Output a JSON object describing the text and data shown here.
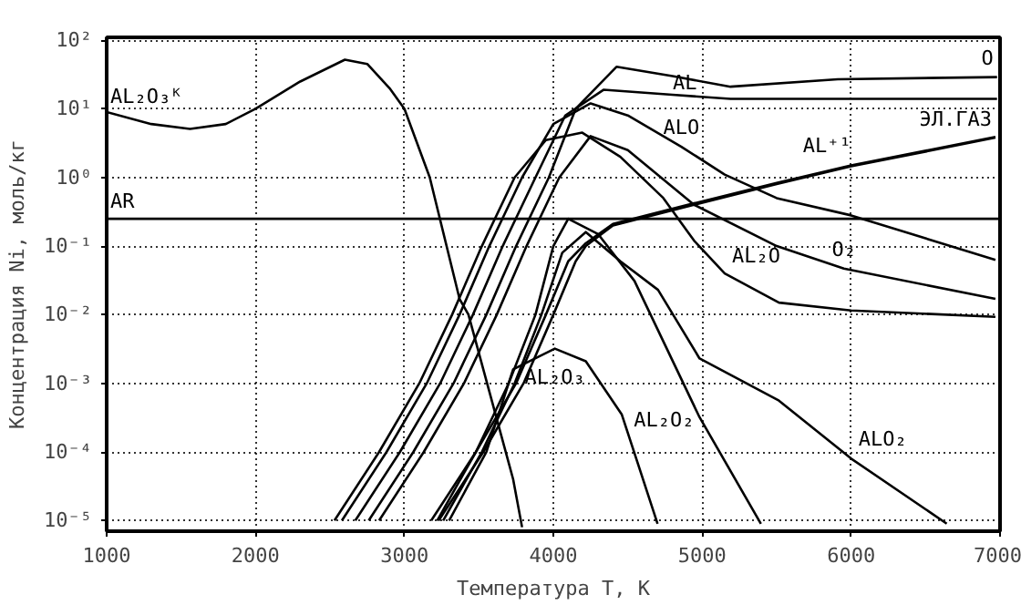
{
  "chart_data": {
    "type": "line",
    "xlabel": "Температура T, K",
    "ylabel": "Концентрация Ni, моль/кг",
    "log": "y",
    "grid": true,
    "line_style": "solid",
    "marker": "none",
    "xlim": [
      1000,
      7000
    ],
    "xticks": [
      1000,
      2000,
      3000,
      4000,
      5000,
      6000,
      7000
    ],
    "ylim": [
      7e-06,
      110
    ],
    "yticks": [
      {
        "value": 100,
        "label": "10²"
      },
      {
        "value": 10,
        "label": "10¹"
      },
      {
        "value": 1,
        "label": "10⁰"
      },
      {
        "value": 0.1,
        "label": "10⁻¹"
      },
      {
        "value": 0.01,
        "label": "10⁻²"
      },
      {
        "value": 0.001,
        "label": "10⁻³"
      },
      {
        "value": 0.0001,
        "label": "10⁻⁴"
      },
      {
        "value": 1e-05,
        "label": "10⁻⁵"
      }
    ],
    "series": [
      {
        "name": "AL₂O₃ᴷ",
        "color": "#000000",
        "x": [
          1000,
          1300,
          1560,
          1800,
          2000,
          2300,
          2600,
          2750,
          2900,
          3000,
          3170,
          3370,
          3430,
          3730,
          3790
        ],
        "values": [
          9,
          6,
          5.1,
          6,
          10,
          25,
          52,
          45,
          20,
          10,
          1,
          0.017,
          0.01,
          4e-05,
          8e-06
        ]
      },
      {
        "name": "AR",
        "color": "#000000",
        "x": [
          1000,
          7000
        ],
        "values": [
          0.25,
          0.25
        ]
      },
      {
        "name": "O",
        "color": "#000000",
        "x": [
          2760,
          3060,
          3330,
          3550,
          3750,
          3970,
          4150,
          4424,
          4800,
          5190,
          5910,
          6980
        ],
        "values": [
          1e-05,
          0.0001,
          0.001,
          0.01,
          0.1,
          1,
          10,
          41,
          30,
          21,
          27,
          29
        ]
      },
      {
        "name": "AL",
        "color": "#000000",
        "x": [
          2670,
          2970,
          3240,
          3460,
          3660,
          3880,
          4080,
          4339,
          4800,
          5190,
          6000,
          6980
        ],
        "values": [
          1e-05,
          0.0001,
          0.001,
          0.01,
          0.1,
          1,
          8,
          19,
          16,
          14,
          14,
          14
        ]
      },
      {
        "name": "ALO",
        "color": "#000000",
        "x": [
          2580,
          2880,
          3150,
          3370,
          3570,
          3790,
          4000,
          4250,
          4500,
          4860,
          5151,
          5500,
          6000,
          6969
        ],
        "values": [
          1e-05,
          0.0001,
          0.001,
          0.01,
          0.1,
          1,
          6,
          12,
          8,
          2.8,
          1.1,
          0.5,
          0.28,
          0.063
        ]
      },
      {
        "name": "AL₂O",
        "color": "#000000",
        "x": [
          2530,
          2830,
          3100,
          3320,
          3520,
          3740,
          3950,
          4194,
          4450,
          4739,
          4945,
          5151,
          5515,
          6000,
          6969
        ],
        "values": [
          1e-05,
          0.0001,
          0.001,
          0.01,
          0.1,
          1,
          3.5,
          4.5,
          2,
          0.5,
          0.12,
          0.04,
          0.015,
          0.0115,
          0.0093
        ]
      },
      {
        "name": "O₂",
        "color": "#000000",
        "x": [
          2830,
          3130,
          3400,
          3620,
          3820,
          4040,
          4250,
          4500,
          4945,
          5500,
          5951,
          6969
        ],
        "values": [
          1e-05,
          0.0001,
          0.001,
          0.01,
          0.1,
          1,
          4,
          2.5,
          0.4,
          0.1,
          0.047,
          0.017
        ]
      },
      {
        "name": "AL⁺¹",
        "color": "#000000",
        "x": [
          3230,
          3530,
          3800,
          4000,
          4150,
          4218,
          4400,
          4945,
          5500,
          6000,
          6969
        ],
        "values": [
          1e-05,
          0.0001,
          0.001,
          0.01,
          0.06,
          0.1,
          0.2,
          0.4,
          0.8,
          1.45,
          3.8
        ]
      },
      {
        "name": "ЭЛ.ГАЗ",
        "color": "#000000",
        "x": [
          3180,
          3480,
          3750,
          3950,
          4100,
          4218,
          4400,
          4945,
          5500,
          6000,
          6969
        ],
        "values": [
          1e-05,
          0.0001,
          0.001,
          0.01,
          0.06,
          0.11,
          0.21,
          0.42,
          0.83,
          1.5,
          3.9
        ]
      },
      {
        "name": "AL₂O₂",
        "color": "#000000",
        "x": [
          3220,
          3480,
          3700,
          3880,
          4000,
          4100,
          4300,
          4545,
          4982,
          5394
        ],
        "values": [
          1e-05,
          0.0001,
          0.001,
          0.01,
          0.1,
          0.25,
          0.15,
          0.031,
          0.00032,
          9e-06
        ]
      },
      {
        "name": "ALO₂",
        "color": "#000000",
        "x": [
          3260,
          3520,
          3740,
          3920,
          4060,
          4218,
          4450,
          4703,
          4982,
          5515,
          6000,
          6642
        ],
        "values": [
          1e-05,
          0.0001,
          0.001,
          0.01,
          0.08,
          0.16,
          0.06,
          0.023,
          0.0023,
          0.00056,
          8e-05,
          9e-06
        ]
      },
      {
        "name": "AL₂O₃",
        "color": "#000000",
        "x": [
          3300,
          3550,
          3730,
          4010,
          4218,
          4460,
          4700
        ],
        "values": [
          1e-05,
          0.0001,
          0.0016,
          0.0032,
          0.0021,
          0.00035,
          9e-06
        ]
      }
    ]
  }
}
